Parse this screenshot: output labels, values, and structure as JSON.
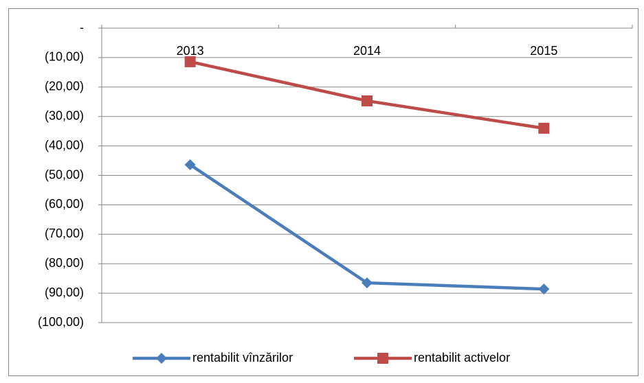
{
  "chart_data": {
    "type": "line",
    "categories": [
      "2013",
      "2014",
      "2015"
    ],
    "series": [
      {
        "name": "rentabilit vînzărilor",
        "color": "#4a7ebb",
        "marker": "diamond",
        "values": [
          -46.4,
          -86.5,
          -88.6
        ]
      },
      {
        "name": "rentabilit activelor",
        "color": "#be4b48",
        "marker": "square",
        "values": [
          -11.4,
          -24.7,
          -34.0
        ]
      }
    ],
    "ylim": [
      -100,
      0
    ],
    "yticks": [
      {
        "value": 0,
        "label": "-"
      },
      {
        "value": -10,
        "label": "(10,00)"
      },
      {
        "value": -20,
        "label": "(20,00)"
      },
      {
        "value": -30,
        "label": "(30,00)"
      },
      {
        "value": -40,
        "label": "(40,00)"
      },
      {
        "value": -50,
        "label": "(50,00)"
      },
      {
        "value": -60,
        "label": "(60,00)"
      },
      {
        "value": -70,
        "label": "(70,00)"
      },
      {
        "value": -80,
        "label": "(80,00)"
      },
      {
        "value": -90,
        "label": "(90,00)"
      },
      {
        "value": -100,
        "label": "(100,00)"
      }
    ],
    "grid": true,
    "legend": "bottom"
  }
}
